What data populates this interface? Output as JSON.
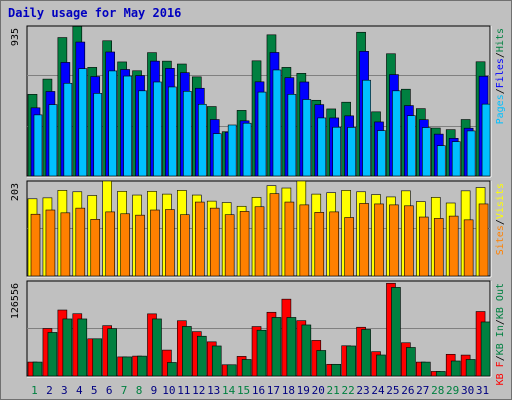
{
  "title": "Daily usage for May 2016",
  "colors": {
    "background": "#c0c0c0",
    "hits": "#008040",
    "files": "#0000ff",
    "pages": "#00c0ff",
    "visits": "#ffff00",
    "sites": "#ff8000",
    "kb_in": "#008040",
    "kb_out": "#ff0000",
    "weekend_label": "#008040",
    "weekday_label": "#000080"
  },
  "chart_data": [
    {
      "type": "bar",
      "panel": "hits-files-pages",
      "ymax_label": "935",
      "ylim": [
        0,
        935
      ],
      "legend": [
        {
          "name": "Pages",
          "sep": "/"
        },
        {
          "name": "Files",
          "sep": "/"
        },
        {
          "name": "Hits",
          "sep": ""
        }
      ],
      "categories": [
        "1",
        "2",
        "3",
        "4",
        "5",
        "6",
        "7",
        "8",
        "9",
        "10",
        "11",
        "12",
        "13",
        "14",
        "15",
        "16",
        "17",
        "18",
        "19",
        "20",
        "21",
        "22",
        "23",
        "24",
        "25",
        "26",
        "27",
        "28",
        "29",
        "30",
        "31"
      ],
      "series": [
        {
          "name": "Hits",
          "values": [
            509,
            604,
            863,
            933,
            677,
            843,
            711,
            656,
            769,
            716,
            698,
            618,
            433,
            276,
            409,
            718,
            880,
            677,
            640,
            472,
            418,
            460,
            896,
            400,
            762,
            541,
            420,
            299,
            289,
            352,
            712
          ]
        },
        {
          "name": "Files",
          "values": [
            425,
            527,
            708,
            835,
            620,
            773,
            664,
            626,
            716,
            671,
            644,
            547,
            352,
            273,
            344,
            587,
            770,
            613,
            586,
            445,
            362,
            375,
            777,
            337,
            632,
            439,
            351,
            261,
            235,
            298,
            622
          ]
        },
        {
          "name": "Pages",
          "values": [
            381,
            445,
            578,
            669,
            515,
            655,
            623,
            531,
            586,
            555,
            528,
            447,
            264,
            318,
            329,
            523,
            661,
            509,
            477,
            362,
            304,
            303,
            597,
            283,
            531,
            376,
            302,
            189,
            214,
            281,
            448
          ]
        }
      ]
    },
    {
      "type": "bar",
      "panel": "visits-sites",
      "ymax_label": "203",
      "ylim": [
        0,
        203
      ],
      "legend": [
        {
          "name": "Sites",
          "sep": "/"
        },
        {
          "name": "Visits",
          "sep": ""
        }
      ],
      "series": [
        {
          "name": "Visits",
          "values": [
            165,
            167,
            183,
            180,
            172,
            203,
            181,
            173,
            181,
            175,
            183,
            173,
            160,
            157,
            149,
            168,
            193,
            188,
            203,
            175,
            178,
            183,
            180,
            174,
            169,
            182,
            159,
            168,
            156,
            182,
            189
          ]
        },
        {
          "name": "Sites",
          "values": [
            132,
            141,
            135,
            145,
            121,
            137,
            133,
            130,
            141,
            142,
            131,
            158,
            145,
            131,
            138,
            148,
            176,
            158,
            152,
            136,
            137,
            125,
            155,
            154,
            152,
            150,
            126,
            123,
            128,
            120,
            154
          ]
        }
      ]
    },
    {
      "type": "bar",
      "panel": "kb-in-out",
      "ymax_label": "126556",
      "ylim": [
        0,
        126556
      ],
      "legend": [
        {
          "name": "KB F",
          "sep": "/"
        },
        {
          "name": "KB In",
          "sep": "/"
        },
        {
          "name": "KB Out",
          "sep": ""
        }
      ],
      "series": [
        {
          "name": "KB F",
          "values": [
            18570,
            63275,
            87891,
            82964,
            49572,
            67070,
            25420,
            26500,
            82780,
            34510,
            73630,
            59120,
            45510,
            14960,
            26130,
            65870,
            84910,
            102370,
            73730,
            47400,
            15600,
            40280,
            64960,
            32420,
            123550,
            44300,
            18530,
            6070,
            28920,
            27870,
            85890
          ]
        },
        {
          "name": "KB Out",
          "values": [
            18570,
            58000,
            76000,
            76000,
            49572,
            63000,
            25420,
            26500,
            76000,
            18000,
            66000,
            53000,
            40000,
            14960,
            22000,
            61000,
            78000,
            78000,
            68000,
            34000,
            15600,
            40000,
            62000,
            28000,
            118000,
            38000,
            18530,
            6070,
            20000,
            22000,
            72000
          ]
        }
      ]
    }
  ],
  "legends": {
    "panel1": [
      "Pages",
      "/",
      "Files",
      "/",
      "Hits"
    ],
    "panel2": [
      "Sites",
      "/",
      "Visits"
    ],
    "panel3": [
      "KB F",
      "/",
      "KB In",
      "/",
      "KB Out"
    ]
  }
}
